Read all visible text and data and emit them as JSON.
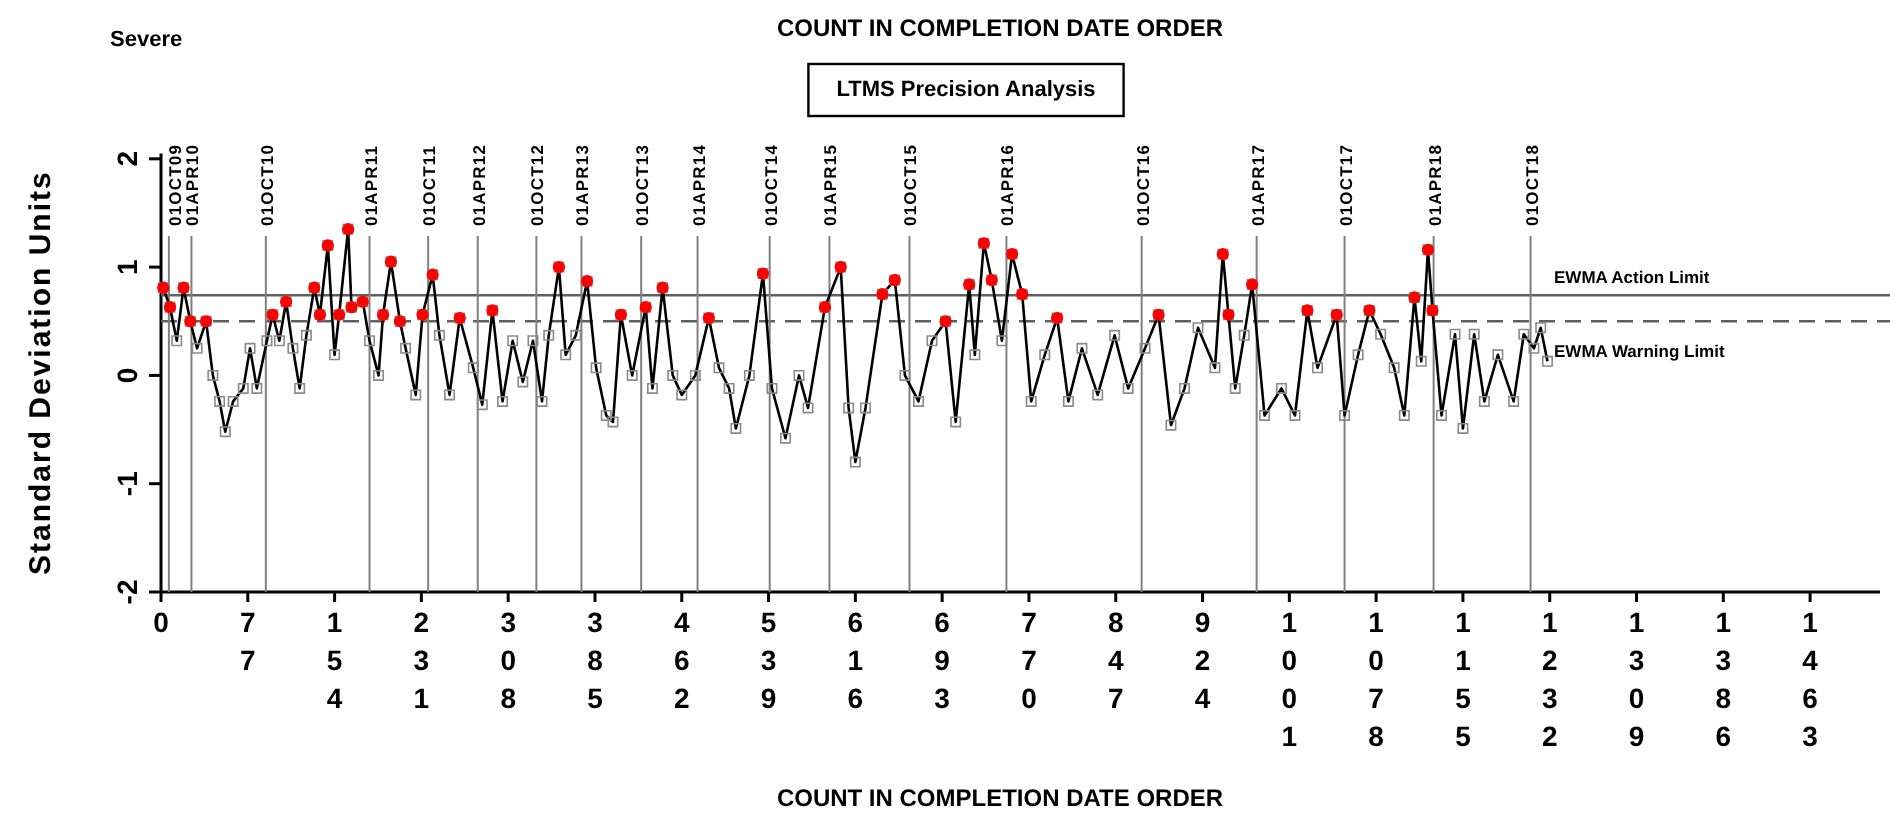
{
  "chart_data": {
    "type": "line",
    "title": "COUNT IN COMPLETION DATE ORDER",
    "subtitle": "LTMS Precision Analysis",
    "xlabel": "COUNT IN COMPLETION DATE ORDER",
    "ylabel": "Standard Deviation Units",
    "annotations": [
      "Severe"
    ],
    "xlim": [
      0,
      1525
    ],
    "xticks": [
      0,
      77,
      154,
      231,
      308,
      385,
      462,
      539,
      616,
      693,
      770,
      847,
      924,
      1001,
      1078,
      1155,
      1232,
      1309,
      1386,
      1463
    ],
    "ylim": [
      -2,
      2.05
    ],
    "yticks": [
      -2,
      -1,
      0,
      1,
      2
    ],
    "marker": "square",
    "line_style": "solid",
    "grid": false,
    "ref_lines": [
      {
        "axis": "y",
        "value": 0.74,
        "label": "EWMA Action Limit",
        "color": "#606060",
        "line_style": "solid"
      },
      {
        "axis": "y",
        "value": 0.5,
        "label": "EWMA Warning Limit",
        "color": "#606060",
        "line_style": "dashed"
      },
      {
        "axis": "x",
        "value": 7,
        "label": "01OCT09",
        "color": "#808080"
      },
      {
        "axis": "x",
        "value": 27,
        "label": "01APR10",
        "color": "#808080"
      },
      {
        "axis": "x",
        "value": 93,
        "label": "01OCT10",
        "color": "#808080"
      },
      {
        "axis": "x",
        "value": 185,
        "label": "01APR11",
        "color": "#808080"
      },
      {
        "axis": "x",
        "value": 237,
        "label": "01OCT11",
        "color": "#808080"
      },
      {
        "axis": "x",
        "value": 281,
        "label": "01APR12",
        "color": "#808080"
      },
      {
        "axis": "x",
        "value": 333,
        "label": "01OCT12",
        "color": "#808080"
      },
      {
        "axis": "x",
        "value": 373,
        "label": "01APR13",
        "color": "#808080"
      },
      {
        "axis": "x",
        "value": 426,
        "label": "01OCT13",
        "color": "#808080"
      },
      {
        "axis": "x",
        "value": 476,
        "label": "01APR14",
        "color": "#808080"
      },
      {
        "axis": "x",
        "value": 540,
        "label": "01OCT14",
        "color": "#808080"
      },
      {
        "axis": "x",
        "value": 593,
        "label": "01APR15",
        "color": "#808080"
      },
      {
        "axis": "x",
        "value": 664,
        "label": "01OCT15",
        "color": "#808080"
      },
      {
        "axis": "x",
        "value": 750,
        "label": "01APR16",
        "color": "#808080"
      },
      {
        "axis": "x",
        "value": 870,
        "label": "01OCT16",
        "color": "#808080"
      },
      {
        "axis": "x",
        "value": 972,
        "label": "01APR17",
        "color": "#808080"
      },
      {
        "axis": "x",
        "value": 1050,
        "label": "01OCT17",
        "color": "#808080"
      },
      {
        "axis": "x",
        "value": 1129,
        "label": "01APR18",
        "color": "#808080"
      },
      {
        "axis": "x",
        "value": 1215,
        "label": "01OCT18",
        "color": "#808080"
      }
    ],
    "series": [
      {
        "type": "line",
        "color": "#000000",
        "x": [
          2,
          8,
          14,
          20,
          26,
          32,
          40,
          46,
          52,
          57,
          64,
          73,
          79,
          85,
          94,
          99,
          105,
          111,
          117,
          123,
          129,
          136,
          141,
          148,
          154,
          158,
          166,
          169,
          179,
          185,
          193,
          197,
          204,
          212,
          217,
          226,
          232,
          241,
          247,
          256,
          265,
          277,
          285,
          294,
          303,
          312,
          321,
          330,
          338,
          344,
          353,
          359,
          368,
          378,
          386,
          395,
          401,
          408,
          418,
          430,
          436,
          445,
          454,
          462,
          474,
          486,
          495,
          504,
          510,
          522,
          534,
          542,
          554,
          566,
          574,
          589,
          603,
          610,
          616,
          625,
          640,
          651,
          660,
          672,
          684,
          696,
          705,
          717,
          722,
          730,
          737,
          746,
          755,
          764,
          772,
          784,
          795,
          805,
          817,
          831,
          846,
          858,
          873,
          885,
          896,
          908,
          920,
          935,
          942,
          947,
          953,
          961,
          968,
          979,
          994,
          1006,
          1017,
          1026,
          1043,
          1050,
          1062,
          1072,
          1082,
          1094,
          1103,
          1112,
          1118,
          1124,
          1128,
          1136,
          1148,
          1155,
          1165,
          1174,
          1186,
          1200,
          1209,
          1218,
          1224,
          1230
        ],
        "values": [
          0.81,
          0.63,
          0.32,
          0.81,
          0.5,
          0.25,
          0.5,
          0.0,
          -0.24,
          -0.52,
          -0.24,
          -0.12,
          0.25,
          -0.12,
          0.32,
          0.56,
          0.32,
          0.68,
          0.25,
          -0.12,
          0.37,
          0.81,
          0.56,
          1.2,
          0.19,
          0.56,
          1.35,
          0.63,
          0.68,
          0.32,
          0.0,
          0.56,
          1.05,
          0.5,
          0.25,
          -0.18,
          0.56,
          0.93,
          0.37,
          -0.18,
          0.53,
          0.07,
          -0.27,
          0.6,
          -0.24,
          0.32,
          -0.06,
          0.32,
          -0.24,
          0.37,
          1.0,
          0.19,
          0.37,
          0.87,
          0.07,
          -0.37,
          -0.43,
          0.56,
          0.0,
          0.63,
          -0.12,
          0.81,
          0.0,
          -0.18,
          0.0,
          0.53,
          0.07,
          -0.12,
          -0.49,
          0.0,
          0.94,
          -0.12,
          -0.58,
          0.0,
          -0.3,
          0.63,
          1.0,
          -0.3,
          -0.8,
          -0.3,
          0.75,
          0.88,
          0.0,
          -0.24,
          0.32,
          0.5,
          -0.43,
          0.84,
          0.19,
          1.22,
          0.88,
          0.32,
          1.12,
          0.75,
          -0.24,
          0.19,
          0.53,
          -0.24,
          0.25,
          -0.18,
          0.37,
          -0.12,
          0.25,
          0.56,
          -0.46,
          -0.12,
          0.44,
          0.07,
          1.12,
          0.56,
          -0.12,
          0.37,
          0.84,
          -0.37,
          -0.12,
          -0.37,
          0.6,
          0.07,
          0.56,
          -0.37,
          0.19,
          0.6,
          0.38,
          0.07,
          -0.37,
          0.72,
          0.13,
          1.16,
          0.6,
          -0.37,
          0.38,
          -0.49,
          0.38,
          -0.24,
          0.19,
          -0.24,
          0.38,
          0.25,
          0.44,
          0.13
        ]
      },
      {
        "type": "scatter",
        "color": "#ff0000",
        "marker": "circle",
        "x": [
          2,
          8,
          20,
          26,
          40,
          99,
          111,
          136,
          141,
          148,
          158,
          166,
          169,
          179,
          197,
          204,
          212,
          232,
          241,
          265,
          294,
          353,
          378,
          408,
          430,
          445,
          486,
          534,
          589,
          603,
          640,
          651,
          696,
          717,
          730,
          737,
          755,
          764,
          795,
          885,
          942,
          947,
          968,
          1017,
          1043,
          1072,
          1112,
          1124,
          1128
        ],
        "values": [
          0.81,
          0.63,
          0.81,
          0.5,
          0.5,
          0.56,
          0.68,
          0.81,
          0.56,
          1.2,
          0.56,
          1.35,
          0.63,
          0.68,
          0.56,
          1.05,
          0.5,
          0.56,
          0.93,
          0.53,
          0.6,
          1.0,
          0.87,
          0.56,
          0.63,
          0.81,
          0.53,
          0.94,
          0.63,
          1.0,
          0.75,
          0.88,
          0.5,
          0.84,
          1.22,
          0.88,
          1.12,
          0.75,
          0.53,
          0.56,
          1.12,
          0.56,
          0.84,
          0.6,
          0.56,
          0.6,
          0.72,
          1.16,
          0.6
        ]
      }
    ]
  }
}
